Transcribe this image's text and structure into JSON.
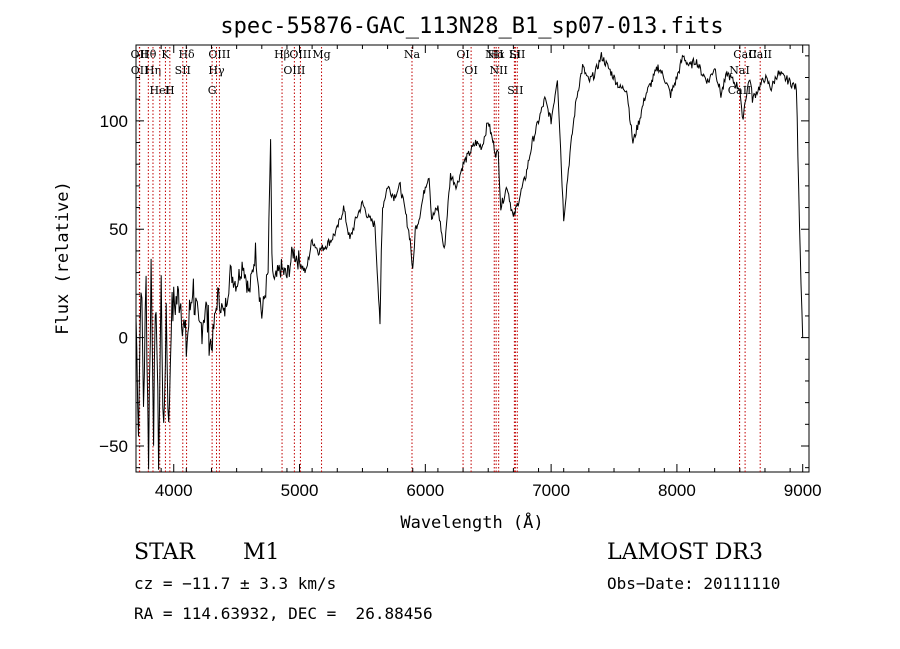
{
  "chart_data": {
    "type": "line",
    "title": "spec-55876-GAC_113N28_B1_sp07-013.fits",
    "xlabel": "Wavelength (Å)",
    "ylabel": "Flux (relative)",
    "xlim": [
      3700,
      9050
    ],
    "ylim": [
      -62,
      135
    ],
    "xticks": [
      4000,
      5000,
      6000,
      7000,
      8000,
      9000
    ],
    "xtick_labels": [
      "4000",
      "5000",
      "6000",
      "7000",
      "8000",
      "9000"
    ],
    "yticks": [
      -50,
      0,
      50,
      100
    ],
    "ytick_labels": [
      "−50",
      "0",
      "50",
      "100"
    ],
    "series": [
      {
        "name": "spectrum",
        "x": [
          3700,
          3720,
          3740,
          3760,
          3780,
          3800,
          3820,
          3840,
          3860,
          3880,
          3900,
          3920,
          3940,
          3960,
          3980,
          4000,
          4050,
          4100,
          4150,
          4200,
          4250,
          4300,
          4350,
          4400,
          4450,
          4500,
          4550,
          4600,
          4650,
          4700,
          4750,
          4770,
          4780,
          4800,
          4850,
          4900,
          4950,
          5000,
          5050,
          5100,
          5150,
          5200,
          5250,
          5300,
          5350,
          5400,
          5450,
          5500,
          5550,
          5600,
          5640,
          5650,
          5660,
          5700,
          5750,
          5800,
          5850,
          5880,
          5900,
          5920,
          5950,
          6000,
          6030,
          6050,
          6100,
          6150,
          6200,
          6250,
          6300,
          6350,
          6400,
          6450,
          6500,
          6530,
          6560,
          6580,
          6600,
          6650,
          6700,
          6750,
          6800,
          6850,
          6900,
          6950,
          7000,
          7050,
          7100,
          7150,
          7200,
          7250,
          7300,
          7350,
          7400,
          7450,
          7500,
          7550,
          7600,
          7650,
          7700,
          7750,
          7800,
          7850,
          7900,
          7950,
          8000,
          8050,
          8100,
          8150,
          8200,
          8250,
          8300,
          8350,
          8400,
          8450,
          8500,
          8520,
          8540,
          8560,
          8580,
          8600,
          8650,
          8700,
          8750,
          8800,
          8850,
          8900,
          8950,
          8980,
          9000
        ],
        "y": [
          10,
          -40,
          30,
          -30,
          25,
          -55,
          35,
          -40,
          20,
          -60,
          25,
          -50,
          15,
          -45,
          10,
          15,
          20,
          -5,
          25,
          0,
          15,
          -5,
          20,
          10,
          30,
          25,
          35,
          20,
          40,
          10,
          30,
          92,
          35,
          25,
          32,
          28,
          40,
          35,
          30,
          45,
          40,
          42,
          45,
          50,
          60,
          45,
          55,
          62,
          55,
          52,
          5,
          40,
          60,
          70,
          65,
          70,
          55,
          45,
          30,
          50,
          55,
          70,
          75,
          55,
          60,
          40,
          75,
          70,
          80,
          85,
          90,
          88,
          100,
          92,
          85,
          85,
          60,
          70,
          55,
          65,
          75,
          90,
          100,
          110,
          100,
          120,
          55,
          85,
          110,
          125,
          118,
          122,
          130,
          125,
          120,
          115,
          115,
          90,
          100,
          112,
          118,
          125,
          120,
          112,
          120,
          130,
          125,
          128,
          122,
          118,
          125,
          112,
          122,
          118,
          115,
          100,
          108,
          115,
          120,
          110,
          115,
          120,
          115,
          122,
          120,
          118,
          115,
          40,
          0
        ]
      }
    ],
    "emission_lines": [
      {
        "label": "Hθ",
        "wavelength": 3798
      },
      {
        "label": "OII",
        "wavelength": 3727
      },
      {
        "label": "OII",
        "wavelength": 3729
      },
      {
        "label": "Hη",
        "wavelength": 3835
      },
      {
        "label": "HeI",
        "wavelength": 3889
      },
      {
        "label": "K",
        "wavelength": 3934
      },
      {
        "label": "SII",
        "wavelength": 4072
      },
      {
        "label": "H",
        "wavelength": 3969
      },
      {
        "label": "Hδ",
        "wavelength": 4102
      },
      {
        "label": "OIII",
        "wavelength": 4363
      },
      {
        "label": "Hγ",
        "wavelength": 4340
      },
      {
        "label": "G",
        "wavelength": 4305
      },
      {
        "label": "Hβ",
        "wavelength": 4861
      },
      {
        "label": "OIII",
        "wavelength": 5007
      },
      {
        "label": "OIII",
        "wavelength": 4959
      },
      {
        "label": "Mg",
        "wavelength": 5175
      },
      {
        "label": "Na",
        "wavelength": 5894
      },
      {
        "label": "OI",
        "wavelength": 6300
      },
      {
        "label": "OI",
        "wavelength": 6364
      },
      {
        "label": "Hα",
        "wavelength": 6563
      },
      {
        "label": "NII",
        "wavelength": 6548
      },
      {
        "label": "NII",
        "wavelength": 6583
      },
      {
        "label": "SII",
        "wavelength": 6716
      },
      {
        "label": "Li",
        "wavelength": 6708
      },
      {
        "label": "SII",
        "wavelength": 6731
      },
      {
        "label": "CaII",
        "wavelength": 8542
      },
      {
        "label": "NaI",
        "wavelength": 8498
      },
      {
        "label": "CaII",
        "wavelength": 8662
      },
      {
        "label": "CaII",
        "wavelength": 8498
      }
    ]
  },
  "info": {
    "object_class": "STAR",
    "subclass": "M1",
    "survey": "LAMOST DR3",
    "redshift": "cz = −11.7 ± 3.3 km/s",
    "obs_date": "Obs−Date: 20111110",
    "coords": "RA = 114.63932, DEC =  26.88456"
  },
  "colors": {
    "axes": "#000000",
    "spectrum": "#000000",
    "lines": "#c00000"
  }
}
